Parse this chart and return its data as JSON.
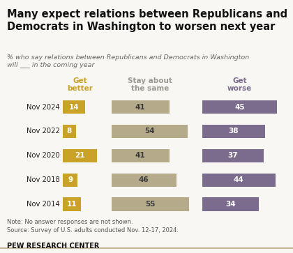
{
  "title": "Many expect relations between Republicans and\nDemocrats in Washington to worsen next year",
  "subtitle": "% who say relations between Republicans and Democrats in Washington\nwill ___ in the coming year",
  "years": [
    "Nov 2024",
    "Nov 2022",
    "Nov 2020",
    "Nov 2018",
    "Nov 2014"
  ],
  "get_better": [
    14,
    8,
    21,
    9,
    11
  ],
  "stay_same": [
    41,
    54,
    41,
    46,
    55
  ],
  "get_worse": [
    45,
    38,
    37,
    44,
    34
  ],
  "color_better": "#C9A227",
  "color_same": "#B5AA8A",
  "color_worse": "#7B6B8D",
  "note": "Note: No answer responses are not shown.\nSource: Survey of U.S. adults conducted Nov. 12-17, 2024.",
  "footer": "PEW RESEARCH CENTER",
  "col_better_label": "Get\nbetter",
  "col_same_label": "Stay about\nthe same",
  "col_worse_label": "Get\nworse",
  "background_color": "#f9f7f4",
  "title_fontsize": 10.5,
  "subtitle_fontsize": 6.8,
  "bar_label_fontsize": 7.5,
  "year_fontsize": 7.2,
  "note_fontsize": 6.0,
  "footer_fontsize": 7.0,
  "col_header_fontsize": 7.5
}
